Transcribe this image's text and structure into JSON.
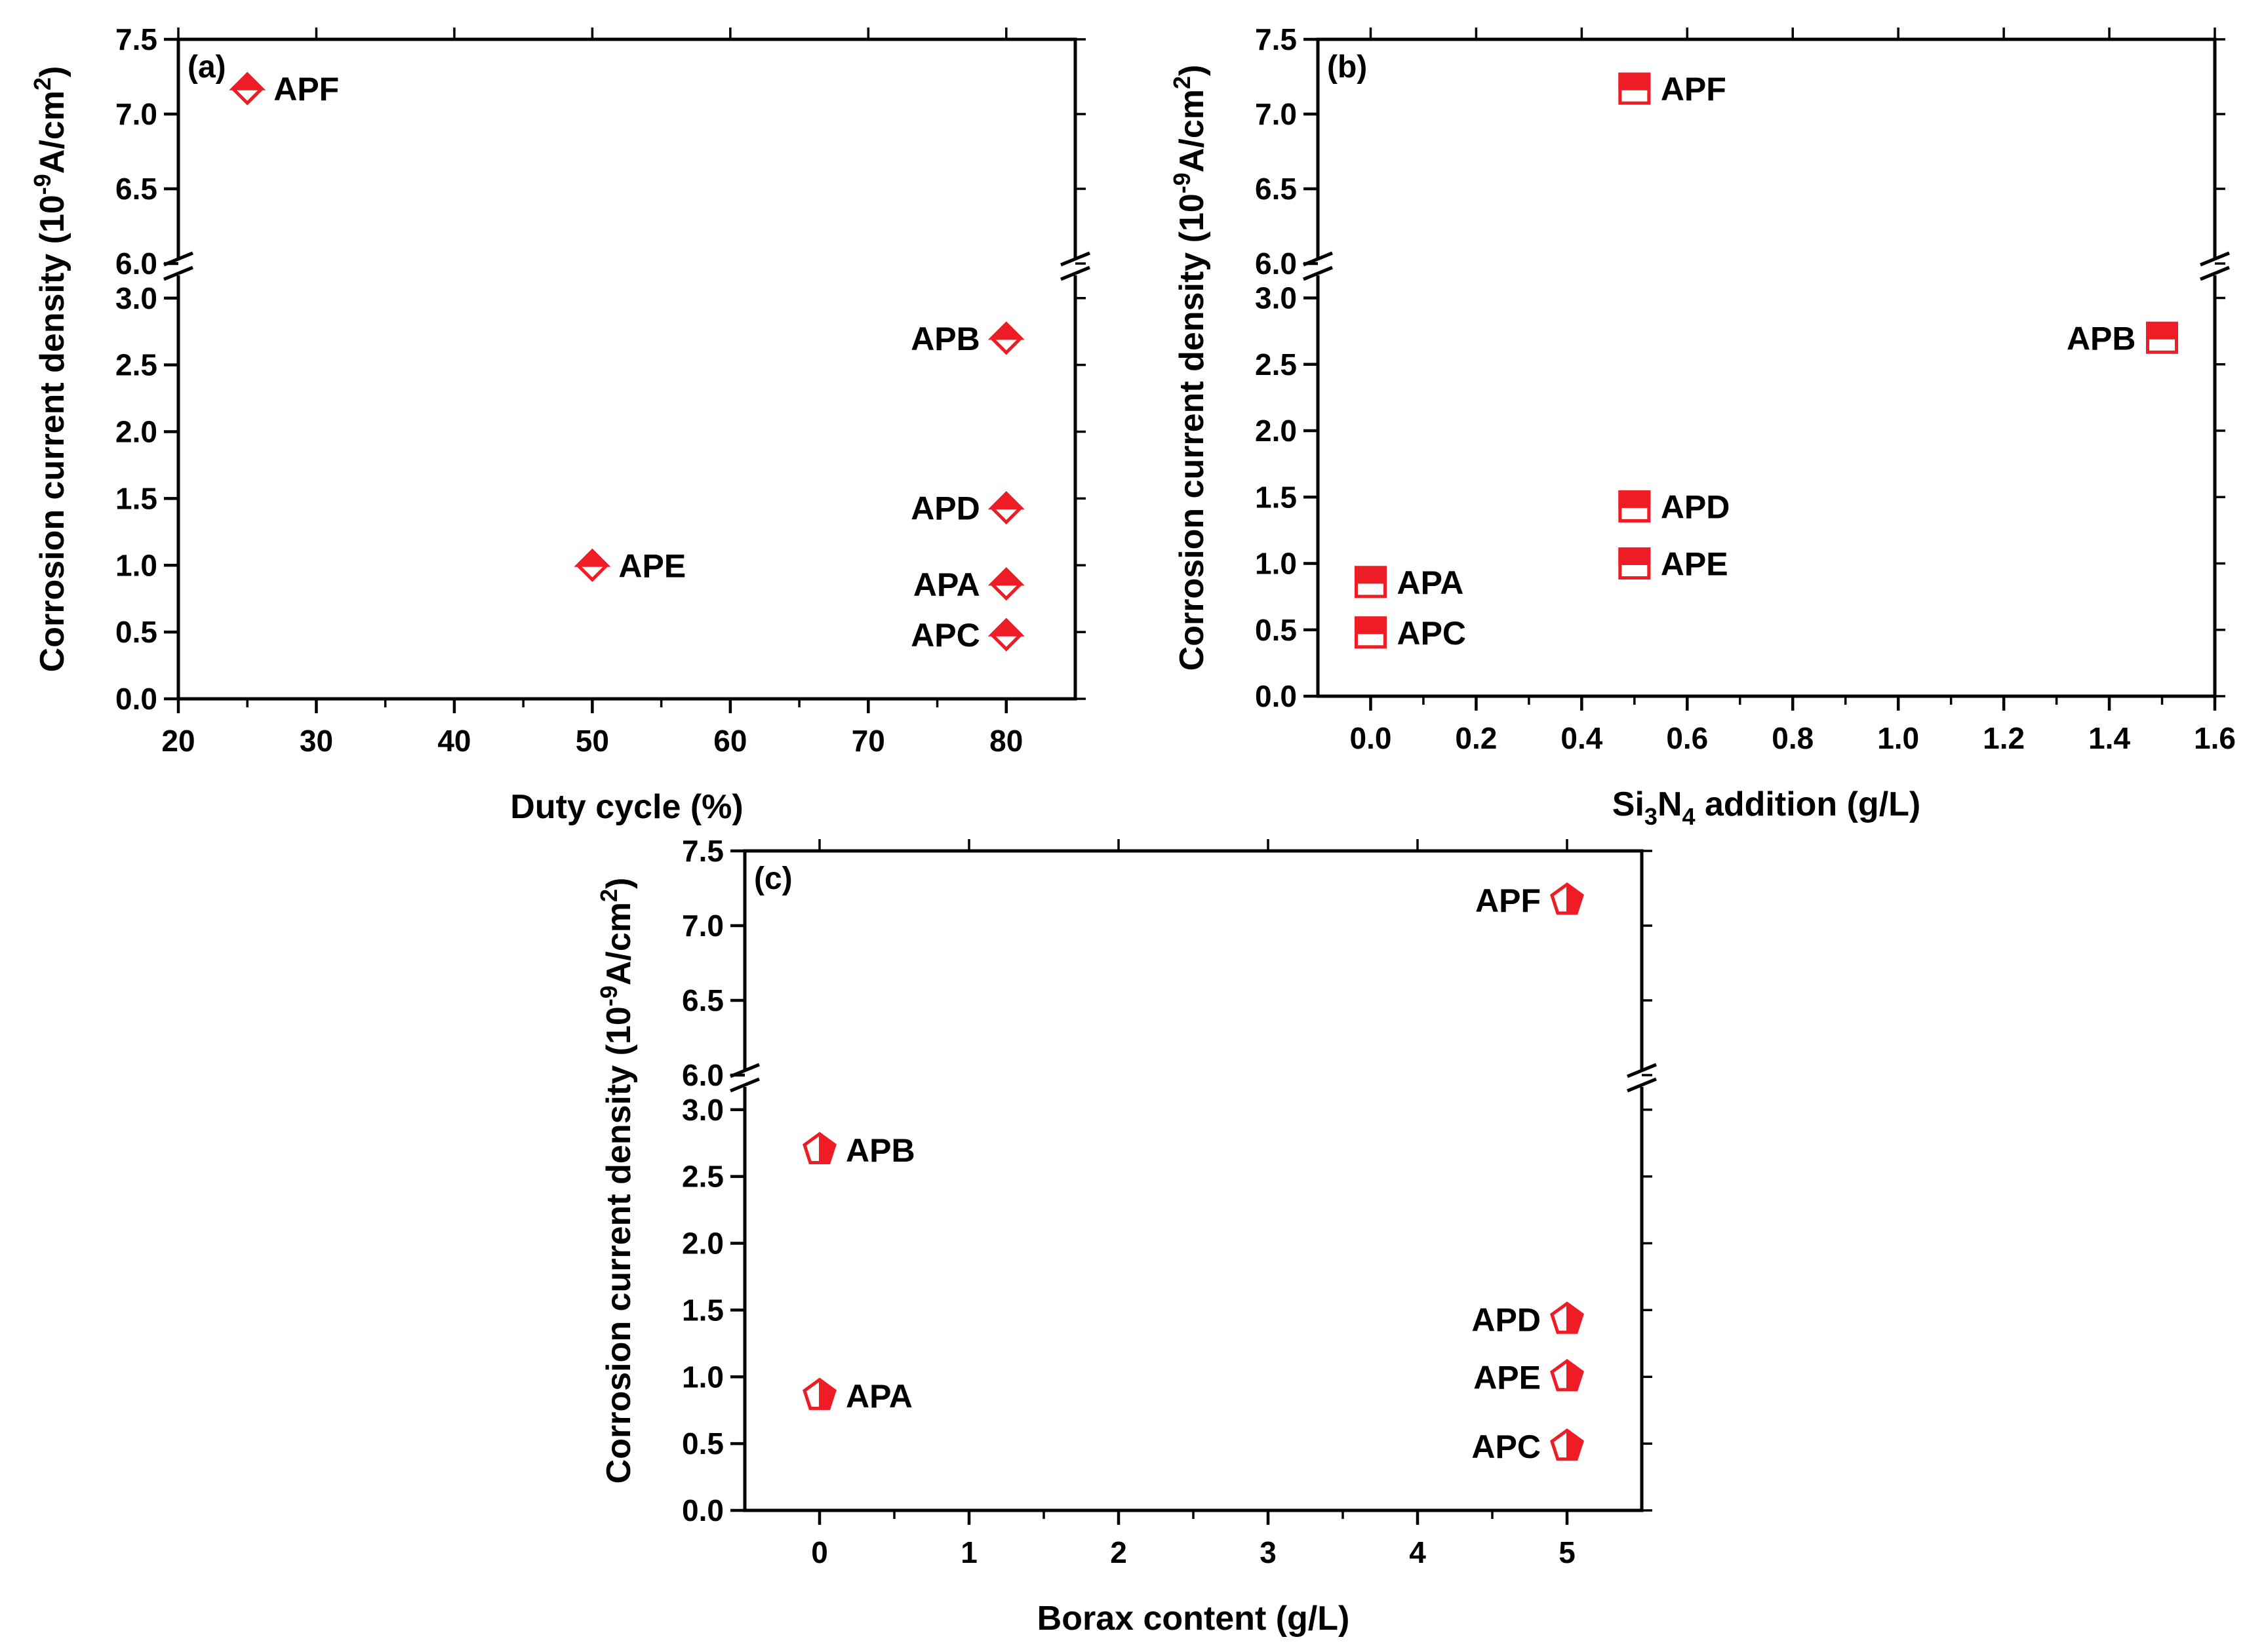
{
  "colors": {
    "marker": "#ee1c25",
    "axis": "#000000",
    "background": "#ffffff"
  },
  "chart_data": [
    {
      "id": "a",
      "type": "scatter",
      "panel_label": "(a)",
      "marker": "diamond",
      "xlabel": "Duty cycle (%)",
      "ylabel": "Corrosion current density (10^-9 A/cm^2)",
      "ylabel_parts": {
        "main": "Corrosion current density (10",
        "sup1": "-9",
        "mid": "A/cm",
        "sup2": "2",
        "end": ")"
      },
      "xlim": [
        20,
        85
      ],
      "x_ticks": [
        "20",
        "30",
        "40",
        "50",
        "60",
        "70",
        "80"
      ],
      "y_axis_break": [
        3.2,
        6.0
      ],
      "y_ticks_lower": [
        "0.0",
        "0.5",
        "1.0",
        "1.5",
        "2.0",
        "2.5",
        "3.0"
      ],
      "y_ticks_upper": [
        "6.0",
        "6.5",
        "7.0",
        "7.5"
      ],
      "points": [
        {
          "label": "APF",
          "x": 25,
          "y": 7.17,
          "label_side": "right"
        },
        {
          "label": "APB",
          "x": 80,
          "y": 2.7,
          "label_side": "left"
        },
        {
          "label": "APD",
          "x": 80,
          "y": 1.43,
          "label_side": "left"
        },
        {
          "label": "APE",
          "x": 50,
          "y": 1.0,
          "label_side": "right"
        },
        {
          "label": "APA",
          "x": 80,
          "y": 0.86,
          "label_side": "left"
        },
        {
          "label": "APC",
          "x": 80,
          "y": 0.48,
          "label_side": "left"
        }
      ]
    },
    {
      "id": "b",
      "type": "scatter",
      "panel_label": "(b)",
      "marker": "square",
      "xlabel": "Si3N4 addition (g/L)",
      "xlabel_parts": {
        "a": "Si",
        "sub1": "3",
        "b": "N",
        "sub2": "4",
        "c": " addition (g/L)"
      },
      "ylabel": "Corrosion current density (10^-9 A/cm^2)",
      "ylabel_parts": {
        "main": "Corrosion current density (10",
        "sup1": "-9",
        "mid": "A/cm",
        "sup2": "2",
        "end": ")"
      },
      "xlim": [
        -0.1,
        1.6
      ],
      "x_ticks": [
        "0.0",
        "0.2",
        "0.4",
        "0.6",
        "0.8",
        "1.0",
        "1.2",
        "1.4",
        "1.6"
      ],
      "y_axis_break": [
        3.2,
        6.0
      ],
      "y_ticks_lower": [
        "0.0",
        "0.5",
        "1.0",
        "1.5",
        "2.0",
        "2.5",
        "3.0"
      ],
      "y_ticks_upper": [
        "6.0",
        "6.5",
        "7.0",
        "7.5"
      ],
      "points": [
        {
          "label": "APF",
          "x": 0.5,
          "y": 7.17,
          "label_side": "right"
        },
        {
          "label": "APB",
          "x": 1.5,
          "y": 2.7,
          "label_side": "left"
        },
        {
          "label": "APD",
          "x": 0.5,
          "y": 1.43,
          "label_side": "right"
        },
        {
          "label": "APE",
          "x": 0.5,
          "y": 1.0,
          "label_side": "right"
        },
        {
          "label": "APA",
          "x": 0.0,
          "y": 0.86,
          "label_side": "right"
        },
        {
          "label": "APC",
          "x": 0.0,
          "y": 0.48,
          "label_side": "right"
        }
      ]
    },
    {
      "id": "c",
      "type": "scatter",
      "panel_label": "(c)",
      "marker": "pentagon",
      "xlabel": "Borax content (g/L)",
      "ylabel": "Corrosion current density (10^-9 A/cm^2)",
      "ylabel_parts": {
        "main": "Corrosion current density (10",
        "sup1": "-9",
        "mid": "A/cm",
        "sup2": "2",
        "end": ")"
      },
      "xlim": [
        -0.5,
        5.5
      ],
      "x_ticks": [
        "0",
        "1",
        "2",
        "3",
        "4",
        "5"
      ],
      "y_axis_break": [
        3.2,
        6.0
      ],
      "y_ticks_lower": [
        "0.0",
        "0.5",
        "1.0",
        "1.5",
        "2.0",
        "2.5",
        "3.0"
      ],
      "y_ticks_upper": [
        "6.0",
        "6.5",
        "7.0",
        "7.5"
      ],
      "points": [
        {
          "label": "APF",
          "x": 5,
          "y": 7.17,
          "label_side": "left"
        },
        {
          "label": "APB",
          "x": 0,
          "y": 2.7,
          "label_side": "right"
        },
        {
          "label": "APD",
          "x": 5,
          "y": 1.43,
          "label_side": "left"
        },
        {
          "label": "APE",
          "x": 5,
          "y": 1.0,
          "label_side": "left"
        },
        {
          "label": "APA",
          "x": 0,
          "y": 0.86,
          "label_side": "right"
        },
        {
          "label": "APC",
          "x": 5,
          "y": 0.48,
          "label_side": "left"
        }
      ]
    }
  ]
}
